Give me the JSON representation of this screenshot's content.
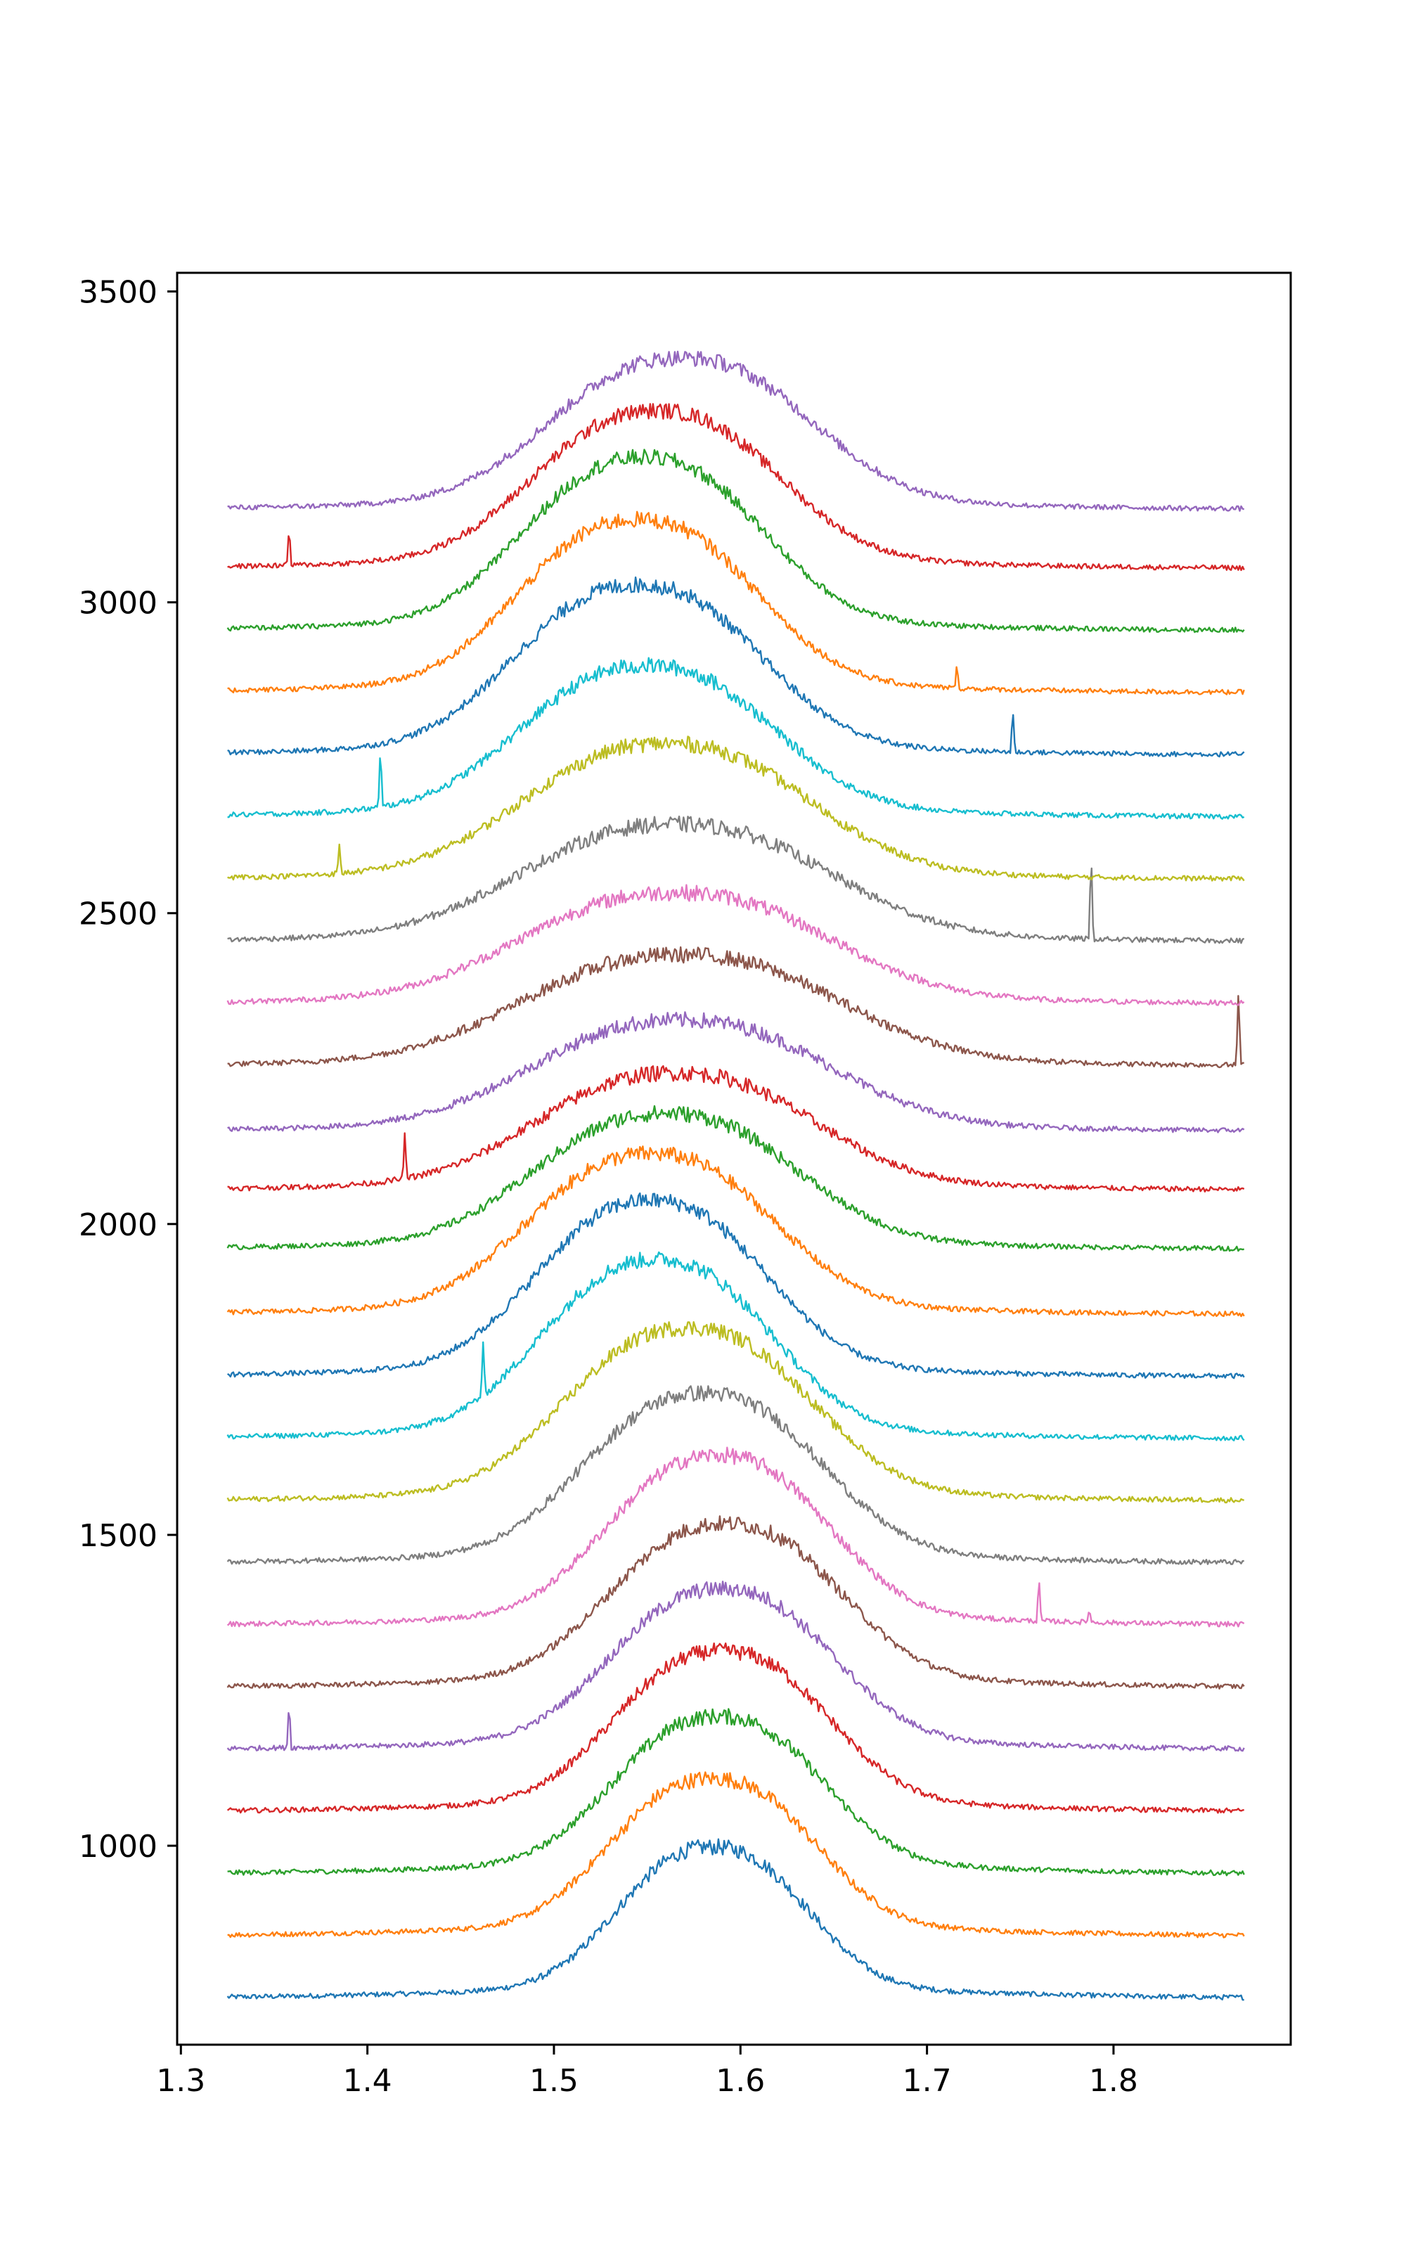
{
  "chart_data": {
    "type": "line",
    "title": "",
    "xlabel": "",
    "ylabel": "",
    "xlim": [
      1.298,
      1.895
    ],
    "ylim": [
      680,
      3530
    ],
    "x_range": [
      1.325,
      1.87
    ],
    "xticks": [
      1.3,
      1.4,
      1.5,
      1.6,
      1.7,
      1.8
    ],
    "xtick_labels": [
      "1.3",
      "1.4",
      "1.5",
      "1.6",
      "1.7",
      "1.8"
    ],
    "yticks": [
      1000,
      1500,
      2000,
      2500,
      3000,
      3500
    ],
    "ytick_labels": [
      "1000",
      "1500",
      "2000",
      "2500",
      "3000",
      "3500"
    ],
    "grid": false,
    "legend": "none",
    "palette": [
      "#1f77b4",
      "#ff7f0e",
      "#2ca02c",
      "#d62728",
      "#9467bd",
      "#8c564b",
      "#e377c2",
      "#7f7f7f",
      "#bcbd22",
      "#17becf"
    ],
    "series": [
      {
        "baseline": 755,
        "peak_center": 1.585,
        "peak_width": 0.048,
        "peak_height": 225,
        "color": "#1f77b4",
        "spikes": []
      },
      {
        "baseline": 855,
        "peak_center": 1.585,
        "peak_width": 0.052,
        "peak_height": 235,
        "color": "#ff7f0e",
        "spikes": []
      },
      {
        "baseline": 955,
        "peak_center": 1.588,
        "peak_width": 0.053,
        "peak_height": 235,
        "color": "#2ca02c",
        "spikes": []
      },
      {
        "baseline": 1055,
        "peak_center": 1.59,
        "peak_width": 0.054,
        "peak_height": 240,
        "color": "#d62728",
        "spikes": []
      },
      {
        "baseline": 1155,
        "peak_center": 1.59,
        "peak_width": 0.056,
        "peak_height": 240,
        "color": "#9467bd",
        "spikes": [
          {
            "x": 1.358,
            "h": 75
          }
        ]
      },
      {
        "baseline": 1255,
        "peak_center": 1.592,
        "peak_width": 0.058,
        "peak_height": 245,
        "color": "#8c564b",
        "spikes": []
      },
      {
        "baseline": 1355,
        "peak_center": 1.588,
        "peak_width": 0.056,
        "peak_height": 255,
        "color": "#e377c2",
        "spikes": [
          {
            "x": 1.76,
            "h": 70
          },
          {
            "x": 1.787,
            "h": 25
          }
        ]
      },
      {
        "baseline": 1455,
        "peak_center": 1.58,
        "peak_width": 0.06,
        "peak_height": 255,
        "color": "#7f7f7f",
        "spikes": []
      },
      {
        "baseline": 1555,
        "peak_center": 1.572,
        "peak_width": 0.062,
        "peak_height": 260,
        "color": "#bcbd22",
        "spikes": []
      },
      {
        "baseline": 1655,
        "peak_center": 1.555,
        "peak_width": 0.058,
        "peak_height": 270,
        "color": "#17becf",
        "spikes": [
          {
            "x": 1.462,
            "h": 80
          }
        ]
      },
      {
        "baseline": 1755,
        "peak_center": 1.552,
        "peak_width": 0.058,
        "peak_height": 265,
        "color": "#1f77b4",
        "spikes": []
      },
      {
        "baseline": 1855,
        "peak_center": 1.552,
        "peak_width": 0.062,
        "peak_height": 240,
        "color": "#ff7f0e",
        "spikes": []
      },
      {
        "baseline": 1960,
        "peak_center": 1.56,
        "peak_width": 0.066,
        "peak_height": 200,
        "color": "#2ca02c",
        "spikes": []
      },
      {
        "baseline": 2055,
        "peak_center": 1.565,
        "peak_width": 0.07,
        "peak_height": 170,
        "color": "#d62728",
        "spikes": [
          {
            "x": 1.42,
            "h": 70
          }
        ]
      },
      {
        "baseline": 2150,
        "peak_center": 1.568,
        "peak_width": 0.075,
        "peak_height": 160,
        "color": "#9467bd",
        "spikes": []
      },
      {
        "baseline": 2255,
        "peak_center": 1.568,
        "peak_width": 0.08,
        "peak_height": 160,
        "color": "#8c564b",
        "spikes": [
          {
            "x": 1.867,
            "h": 125
          }
        ]
      },
      {
        "baseline": 2355,
        "peak_center": 1.565,
        "peak_width": 0.078,
        "peak_height": 160,
        "color": "#e377c2",
        "spikes": []
      },
      {
        "baseline": 2455,
        "peak_center": 1.565,
        "peak_width": 0.078,
        "peak_height": 170,
        "color": "#7f7f7f",
        "spikes": [
          {
            "x": 1.788,
            "h": 140
          }
        ]
      },
      {
        "baseline": 2555,
        "peak_center": 1.56,
        "peak_width": 0.072,
        "peak_height": 200,
        "color": "#bcbd22",
        "spikes": [
          {
            "x": 1.385,
            "h": 45
          }
        ]
      },
      {
        "baseline": 2655,
        "peak_center": 1.55,
        "peak_width": 0.064,
        "peak_height": 225,
        "color": "#17becf",
        "spikes": [
          {
            "x": 1.407,
            "h": 95
          }
        ]
      },
      {
        "baseline": 2755,
        "peak_center": 1.545,
        "peak_width": 0.062,
        "peak_height": 255,
        "color": "#1f77b4",
        "spikes": [
          {
            "x": 1.746,
            "h": 70
          }
        ]
      },
      {
        "baseline": 2855,
        "peak_center": 1.545,
        "peak_width": 0.06,
        "peak_height": 260,
        "color": "#ff7f0e",
        "spikes": [
          {
            "x": 1.716,
            "h": 35
          }
        ]
      },
      {
        "baseline": 2955,
        "peak_center": 1.548,
        "peak_width": 0.06,
        "peak_height": 260,
        "color": "#2ca02c",
        "spikes": []
      },
      {
        "baseline": 3055,
        "peak_center": 1.555,
        "peak_width": 0.062,
        "peak_height": 235,
        "color": "#d62728",
        "spikes": [
          {
            "x": 1.358,
            "h": 65
          }
        ]
      },
      {
        "baseline": 3150,
        "peak_center": 1.568,
        "peak_width": 0.066,
        "peak_height": 225,
        "color": "#9467bd",
        "spikes": []
      }
    ]
  }
}
